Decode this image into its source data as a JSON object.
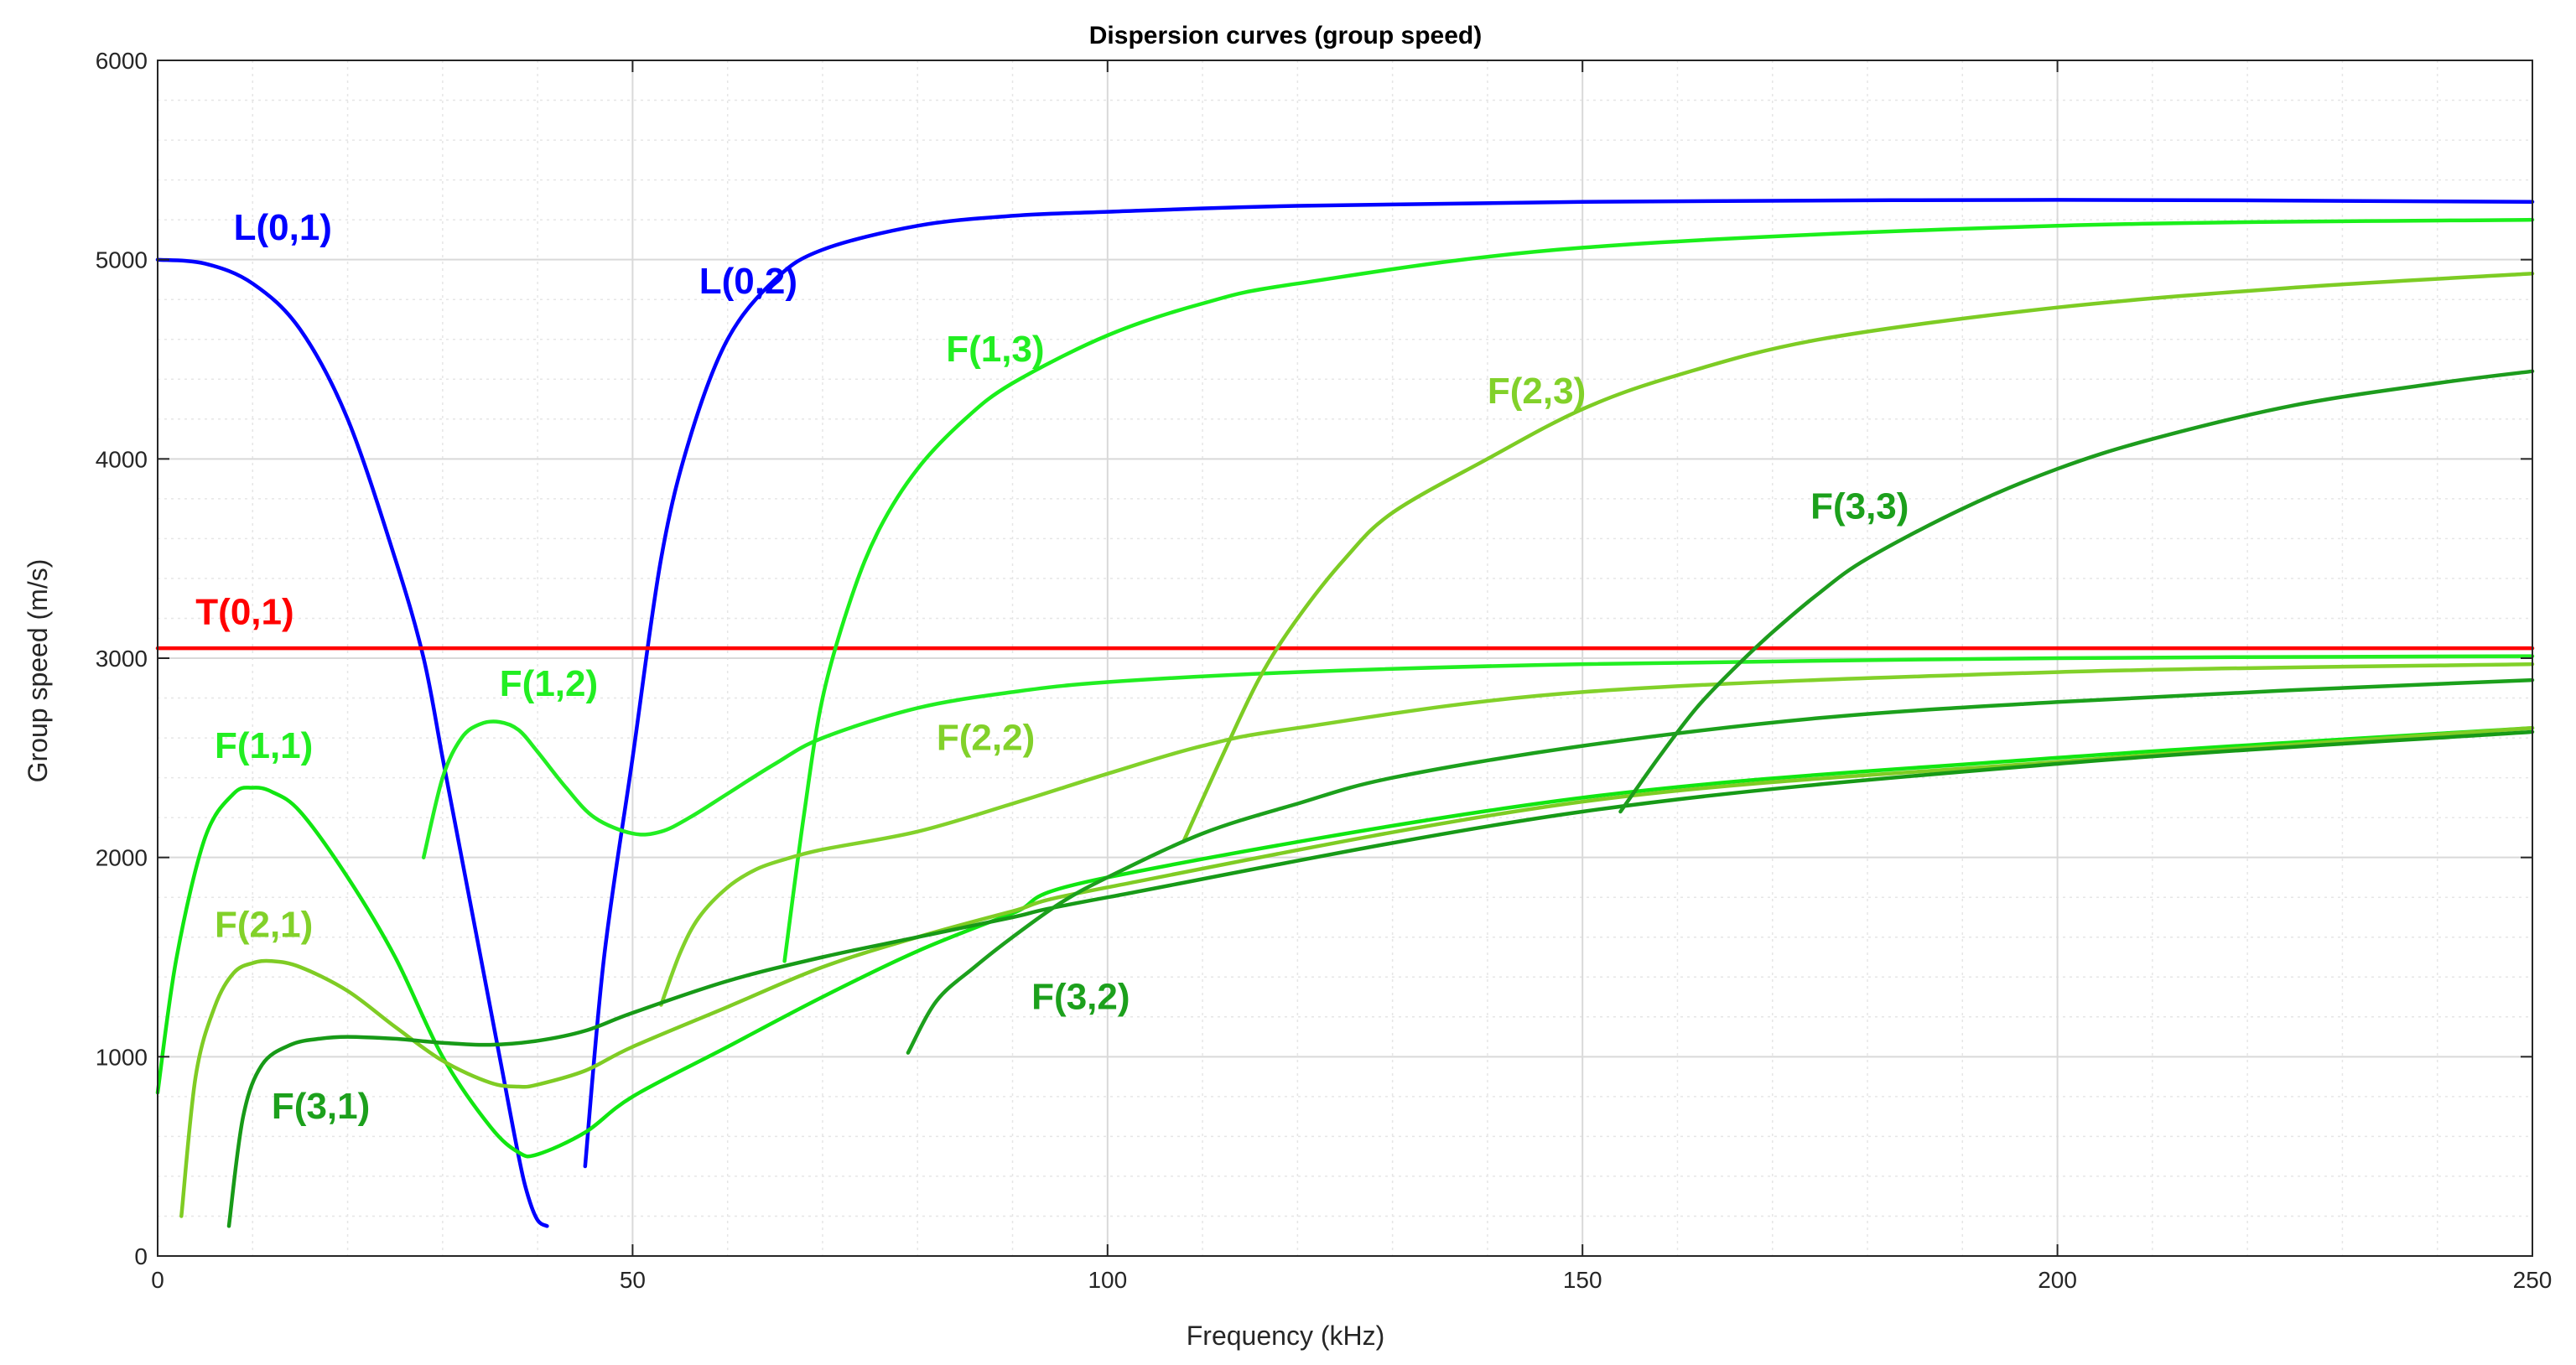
{
  "chart_data": {
    "type": "line",
    "title": "Dispersion curves (group speed)",
    "xlabel": "Frequency (kHz)",
    "ylabel": "Group speed (m/s)",
    "xlim": [
      0,
      250
    ],
    "ylim": [
      0,
      6000
    ],
    "xticks": [
      0,
      50,
      100,
      150,
      200,
      250
    ],
    "yticks": [
      0,
      1000,
      2000,
      3000,
      4000,
      5000,
      6000
    ],
    "grid": true,
    "minor_grid": true,
    "series": [
      {
        "name": "L(0,1)",
        "color": "#0000ff",
        "x": [
          0,
          5,
          10,
          15,
          20,
          25,
          28,
          30,
          32,
          34,
          36,
          38,
          39,
          40,
          41
        ],
        "y": [
          5000,
          4980,
          4880,
          4650,
          4200,
          3500,
          3000,
          2500,
          2000,
          1500,
          1000,
          500,
          300,
          180,
          150
        ]
      },
      {
        "name": "L(0,2)",
        "color": "#0000ff",
        "x": [
          45,
          47,
          50,
          53,
          56,
          60,
          65,
          70,
          80,
          90,
          100,
          120,
          150,
          200,
          250
        ],
        "y": [
          450,
          1500,
          2500,
          3500,
          4100,
          4600,
          4900,
          5050,
          5170,
          5220,
          5240,
          5270,
          5290,
          5300,
          5290
        ]
      },
      {
        "name": "T(0,1)",
        "color": "#ff0000",
        "x": [
          0,
          250
        ],
        "y": [
          3050,
          3050
        ]
      },
      {
        "name": "F(1,1)",
        "color": "#11e611",
        "x": [
          0,
          2,
          5,
          8,
          10,
          12,
          15,
          20,
          25,
          30,
          35,
          38,
          40,
          45,
          50,
          60,
          70,
          80,
          90,
          100,
          150,
          200,
          250
        ],
        "y": [
          820,
          1500,
          2100,
          2320,
          2350,
          2330,
          2230,
          1900,
          1500,
          1000,
          650,
          520,
          510,
          620,
          800,
          1050,
          1300,
          1530,
          1720,
          1900,
          2300,
          2500,
          2650
        ]
      },
      {
        "name": "F(1,2)",
        "color": "#22ee22",
        "x": [
          28,
          30,
          32,
          34,
          36,
          38,
          40,
          43,
          46,
          50,
          53,
          56,
          60,
          65,
          70,
          80,
          90,
          100,
          120,
          150,
          200,
          250
        ],
        "y": [
          2000,
          2400,
          2600,
          2670,
          2680,
          2640,
          2530,
          2350,
          2200,
          2120,
          2130,
          2200,
          2320,
          2470,
          2600,
          2750,
          2830,
          2880,
          2930,
          2970,
          3000,
          3010
        ]
      },
      {
        "name": "F(1,3)",
        "color": "#1bef1b",
        "x": [
          66,
          68,
          70,
          73,
          76,
          80,
          85,
          90,
          100,
          110,
          120,
          150,
          200,
          250
        ],
        "y": [
          1480,
          2200,
          2800,
          3300,
          3650,
          3950,
          4200,
          4380,
          4620,
          4780,
          4880,
          5060,
          5170,
          5200
        ]
      },
      {
        "name": "F(2,1)",
        "color": "#7fcc24",
        "x": [
          2.5,
          4,
          6,
          8,
          10,
          12,
          15,
          20,
          25,
          30,
          35,
          38,
          40,
          45,
          50,
          60,
          70,
          80,
          90,
          100,
          150,
          200,
          250
        ],
        "y": [
          200,
          900,
          1250,
          1420,
          1470,
          1480,
          1450,
          1330,
          1150,
          980,
          870,
          850,
          860,
          930,
          1050,
          1250,
          1450,
          1600,
          1730,
          1850,
          2280,
          2480,
          2650
        ]
      },
      {
        "name": "F(2,2)",
        "color": "#82d12a",
        "x": [
          53,
          55,
          57,
          60,
          63,
          66,
          70,
          80,
          90,
          100,
          110,
          120,
          150,
          200,
          250
        ],
        "y": [
          1260,
          1520,
          1700,
          1850,
          1940,
          1990,
          2040,
          2130,
          2270,
          2420,
          2560,
          2650,
          2830,
          2930,
          2970
        ]
      },
      {
        "name": "F(2,3)",
        "color": "#7dcc24",
        "x": [
          108,
          112,
          116,
          120,
          125,
          130,
          140,
          150,
          160,
          175,
          200,
          225,
          250
        ],
        "y": [
          2080,
          2500,
          2900,
          3200,
          3500,
          3730,
          4000,
          4250,
          4420,
          4600,
          4760,
          4860,
          4930
        ]
      },
      {
        "name": "F(3,1)",
        "color": "#179a17",
        "x": [
          7.5,
          9,
          11,
          14,
          17,
          20,
          25,
          30,
          35,
          40,
          45,
          50,
          60,
          70,
          80,
          90,
          100,
          150,
          200,
          250
        ],
        "y": [
          150,
          700,
          960,
          1060,
          1090,
          1100,
          1090,
          1070,
          1060,
          1080,
          1130,
          1220,
          1380,
          1500,
          1600,
          1700,
          1800,
          2230,
          2470,
          2630
        ]
      },
      {
        "name": "F(3,2)",
        "color": "#1ca01c",
        "x": [
          79,
          82,
          86,
          90,
          95,
          100,
          110,
          120,
          130,
          150,
          175,
          200,
          225,
          250
        ],
        "y": [
          1020,
          1280,
          1450,
          1600,
          1770,
          1900,
          2120,
          2270,
          2400,
          2560,
          2700,
          2780,
          2840,
          2890
        ]
      },
      {
        "name": "F(3,3)",
        "color": "#1d9c1d",
        "x": [
          154,
          158,
          162,
          166,
          170,
          175,
          180,
          190,
          200,
          210,
          225,
          240,
          250
        ],
        "y": [
          2230,
          2500,
          2750,
          2950,
          3130,
          3330,
          3500,
          3750,
          3950,
          4100,
          4270,
          4380,
          4440
        ]
      }
    ],
    "annotations": [
      {
        "text": "L(0,1)",
        "color": "#0000ff",
        "x": 8,
        "y": 5100
      },
      {
        "text": "L(0,2)",
        "color": "#0000ff",
        "x": 57,
        "y": 4830
      },
      {
        "text": "T(0,1)",
        "color": "#ff0000",
        "x": 4,
        "y": 3170
      },
      {
        "text": "F(1,1)",
        "color": "#22ee22",
        "x": 6,
        "y": 2500
      },
      {
        "text": "F(1,2)",
        "color": "#22ee22",
        "x": 36,
        "y": 2810
      },
      {
        "text": "F(1,3)",
        "color": "#22ee22",
        "x": 83,
        "y": 4490
      },
      {
        "text": "F(2,1)",
        "color": "#82d12a",
        "x": 6,
        "y": 1600
      },
      {
        "text": "F(2,2)",
        "color": "#82d12a",
        "x": 82,
        "y": 2540
      },
      {
        "text": "F(2,3)",
        "color": "#82d12a",
        "x": 140,
        "y": 4280
      },
      {
        "text": "F(3,1)",
        "color": "#1ca01c",
        "x": 12,
        "y": 690
      },
      {
        "text": "F(3,2)",
        "color": "#1ca01c",
        "x": 92,
        "y": 1240
      },
      {
        "text": "F(3,3)",
        "color": "#1ca01c",
        "x": 174,
        "y": 3700
      }
    ]
  }
}
